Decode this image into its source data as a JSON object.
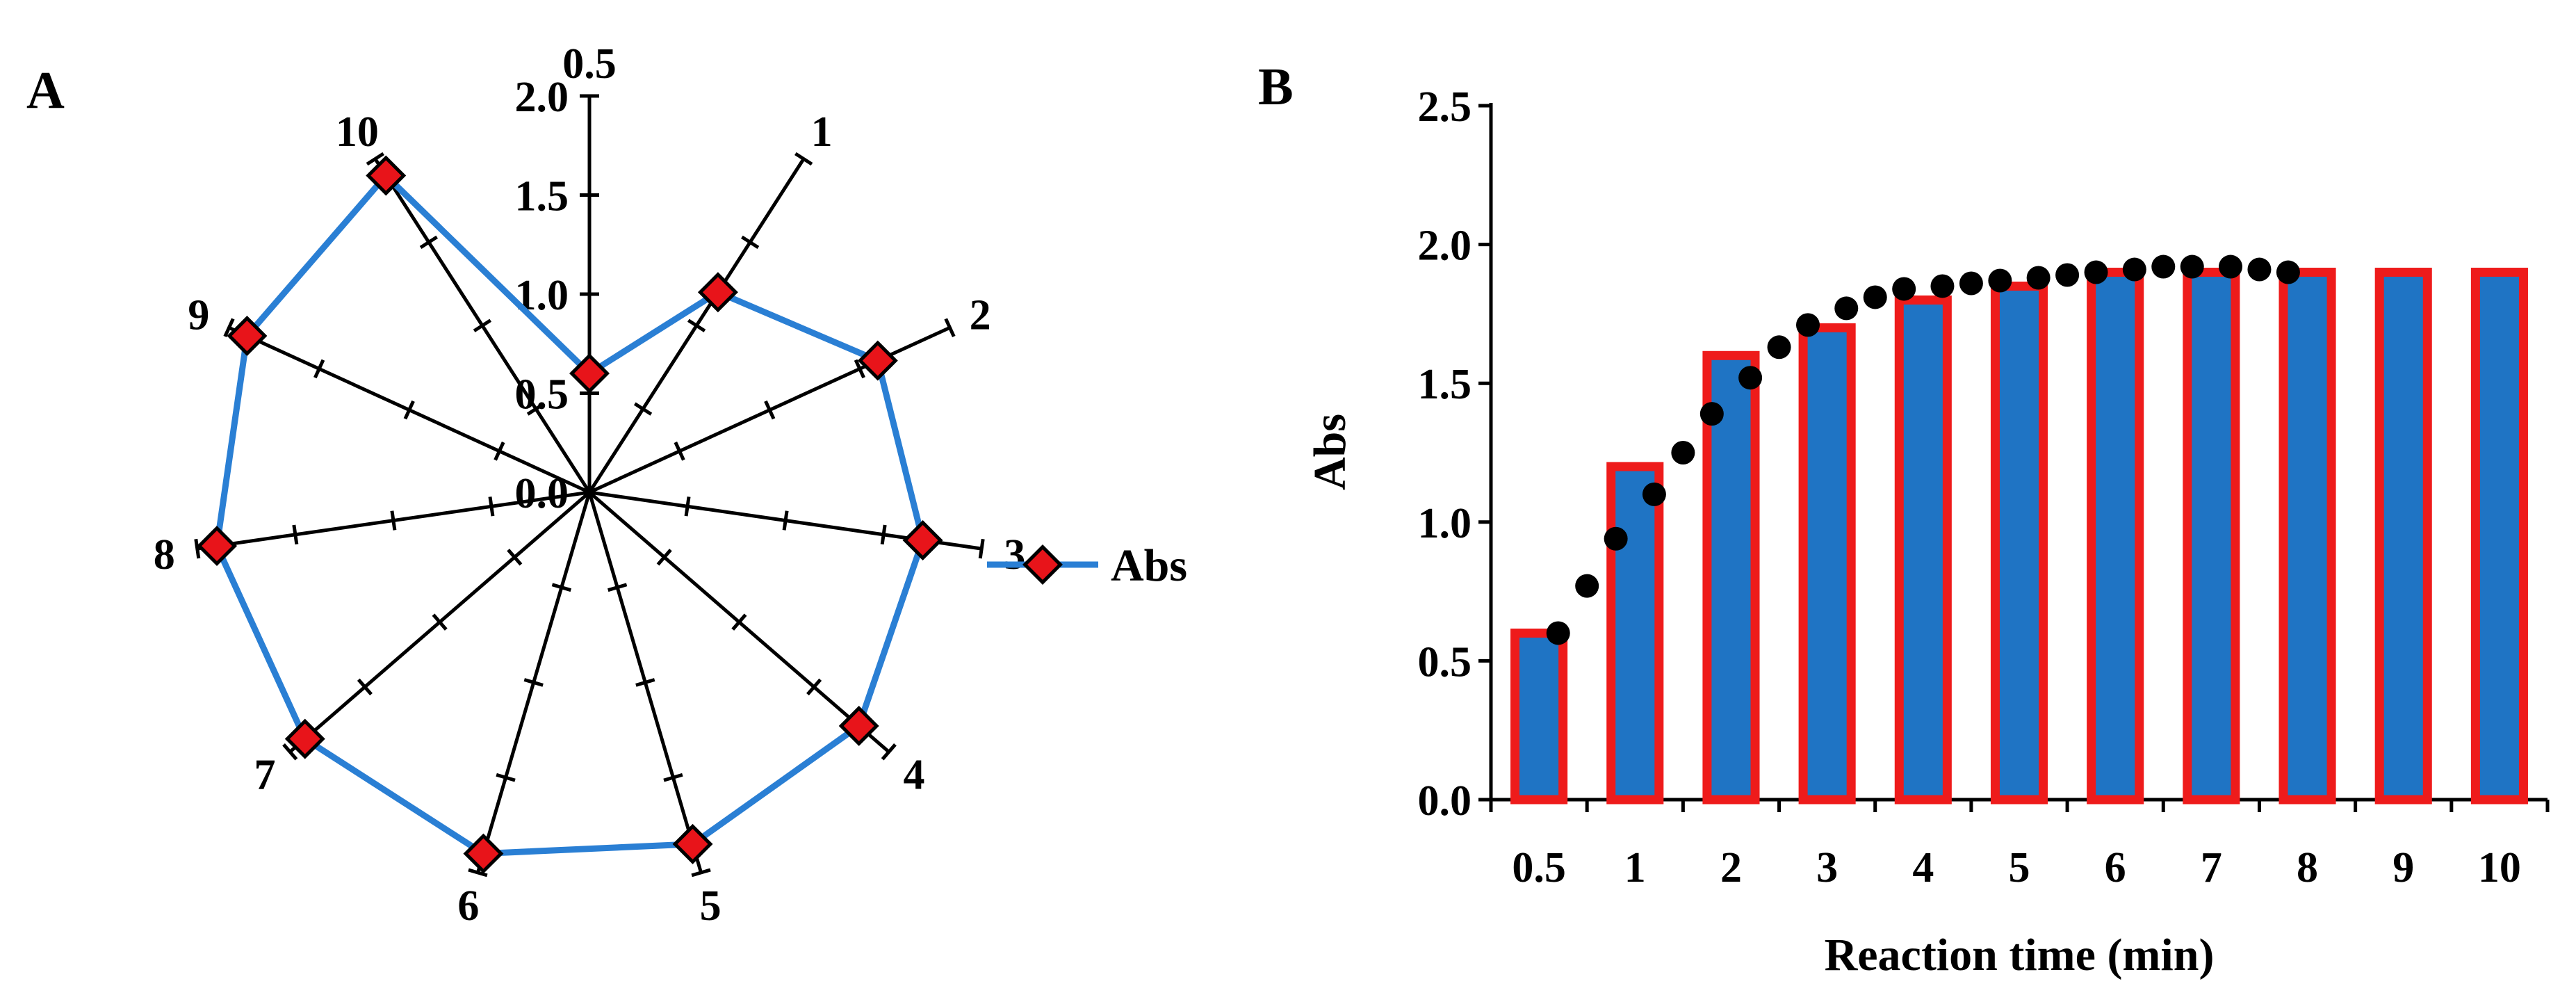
{
  "colors": {
    "line": "#2a7fd4",
    "marker_fill": "#e8141a",
    "bar_fill": "#1f74c4",
    "bar_edge": "#ee1b1b",
    "dot": "#000000",
    "axis": "#000000"
  },
  "chart_data": [
    {
      "panel": "A",
      "type": "radar",
      "title": "",
      "categories": [
        "0.5",
        "1",
        "2",
        "3",
        "4",
        "5",
        "6",
        "7",
        "8",
        "9",
        "10"
      ],
      "radial_ticks": [
        "0.0",
        "0.5",
        "1.0",
        "1.5",
        "2.0"
      ],
      "rlim": [
        0,
        2.0
      ],
      "grid": false,
      "legend": {
        "position": "right",
        "entries": [
          "Abs"
        ]
      },
      "series": [
        {
          "name": "Abs",
          "values": [
            0.6,
            1.2,
            1.6,
            1.7,
            1.8,
            1.85,
            1.9,
            1.9,
            1.9,
            1.9,
            1.9
          ]
        }
      ]
    },
    {
      "panel": "B",
      "type": "bar",
      "title": "",
      "categories": [
        "0.5",
        "1",
        "2",
        "3",
        "4",
        "5",
        "6",
        "7",
        "8",
        "9",
        "10"
      ],
      "values": [
        0.6,
        1.2,
        1.6,
        1.7,
        1.8,
        1.85,
        1.9,
        1.9,
        1.9,
        1.9,
        1.9
      ],
      "overlay_scatter": {
        "x": [
          0.2,
          0.5,
          0.8,
          1.2,
          1.5,
          1.8,
          2.2,
          2.5,
          2.8,
          3.2,
          3.5,
          3.8,
          4.2,
          4.5,
          4.8,
          5.2,
          5.5,
          5.8,
          6.2,
          6.5,
          6.8,
          7.2,
          7.5,
          7.8
        ],
        "y": [
          0.6,
          0.77,
          0.94,
          1.1,
          1.25,
          1.39,
          1.52,
          1.63,
          1.71,
          1.77,
          1.81,
          1.84,
          1.85,
          1.86,
          1.87,
          1.88,
          1.89,
          1.9,
          1.91,
          1.92,
          1.92,
          1.92,
          1.91,
          1.9
        ]
      },
      "xlabel": "Reaction time (min)",
      "ylabel": "Abs",
      "ylim": [
        0,
        2.5
      ],
      "yticks": [
        "0.0",
        "0.5",
        "1.0",
        "1.5",
        "2.0",
        "2.5"
      ],
      "grid": false
    }
  ]
}
